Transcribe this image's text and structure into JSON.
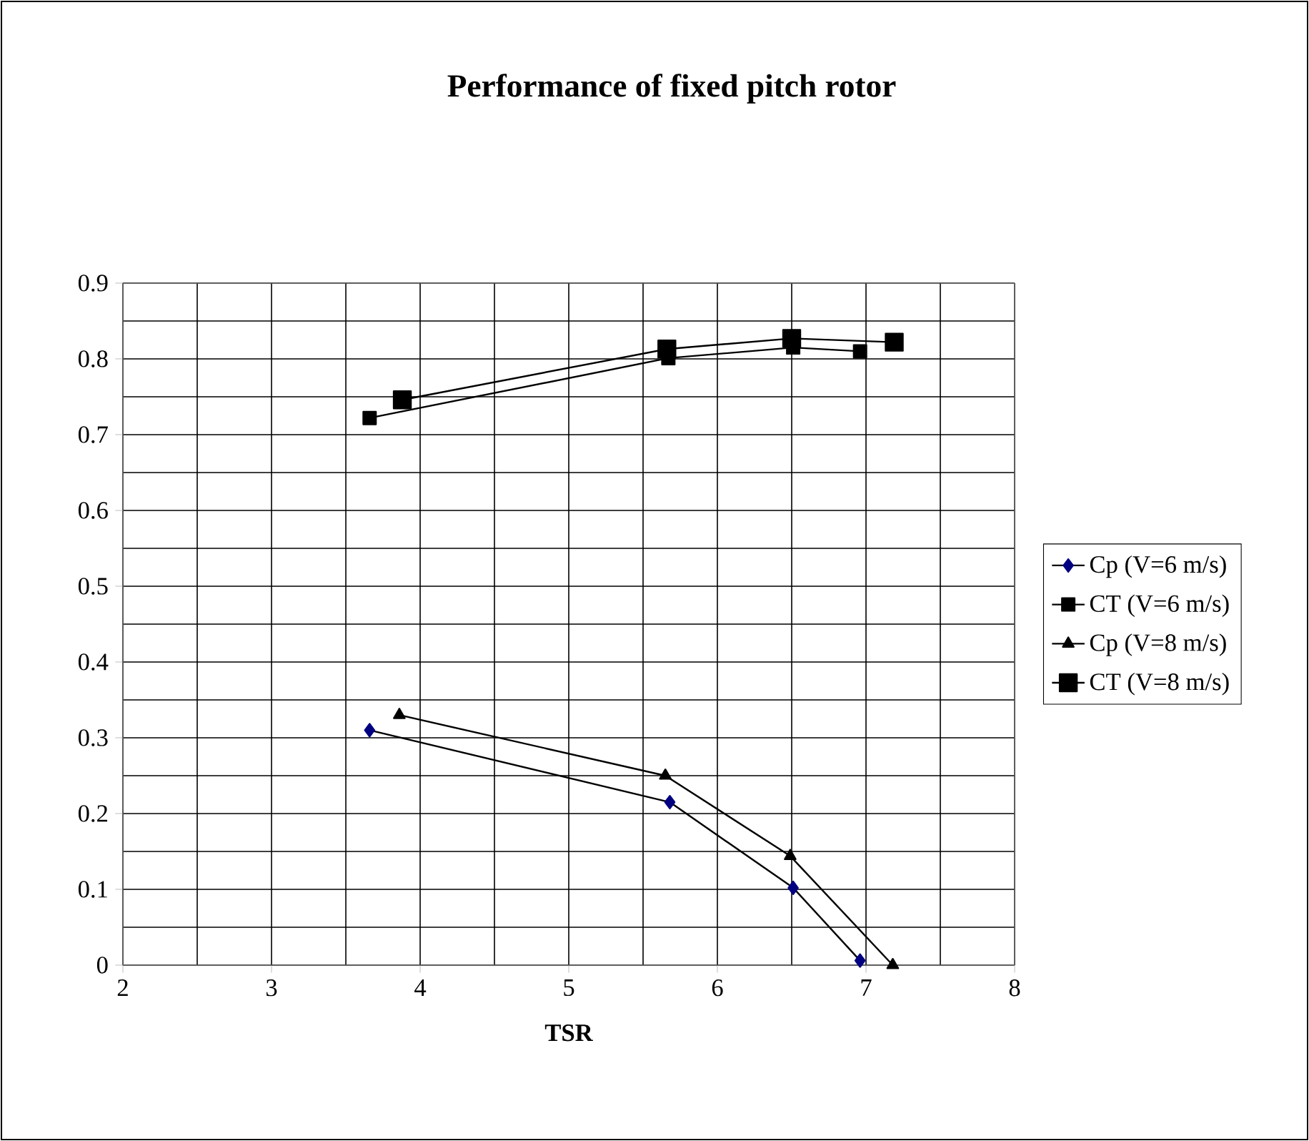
{
  "chart_data": {
    "type": "line",
    "title": "Performance of fixed pitch rotor",
    "xlabel": "TSR",
    "xlim": [
      2,
      8
    ],
    "xticks": [
      2,
      3,
      4,
      5,
      6,
      7,
      8
    ],
    "ylim": [
      0,
      0.9
    ],
    "yticks": [
      0,
      0.1,
      0.2,
      0.3,
      0.4,
      0.5,
      0.6,
      0.7,
      0.8,
      0.9
    ],
    "grid": true,
    "legend": "right",
    "line_style": "solid",
    "series": [
      {
        "name": "Cp (V=6 m/s)",
        "color": "#000080",
        "marker": "diamond",
        "x": [
          3.66,
          5.68,
          6.51,
          6.96
        ],
        "values": [
          0.31,
          0.215,
          0.102,
          0.006
        ]
      },
      {
        "name": "CT (V=6 m/s)",
        "color": "#000000",
        "marker": "square",
        "x": [
          3.66,
          5.67,
          6.51,
          6.96
        ],
        "values": [
          0.722,
          0.801,
          0.815,
          0.81
        ]
      },
      {
        "name": "Cp (V=8 m/s)",
        "color": "#000000",
        "marker": "triangle",
        "x": [
          3.86,
          5.65,
          6.49,
          7.18
        ],
        "values": [
          0.33,
          0.25,
          0.144,
          0.0
        ]
      },
      {
        "name": "CT (V=8 m/s)",
        "color": "#000000",
        "marker": "square",
        "x": [
          3.88,
          5.66,
          6.5,
          7.19
        ],
        "values": [
          0.746,
          0.813,
          0.827,
          0.822
        ]
      }
    ]
  }
}
